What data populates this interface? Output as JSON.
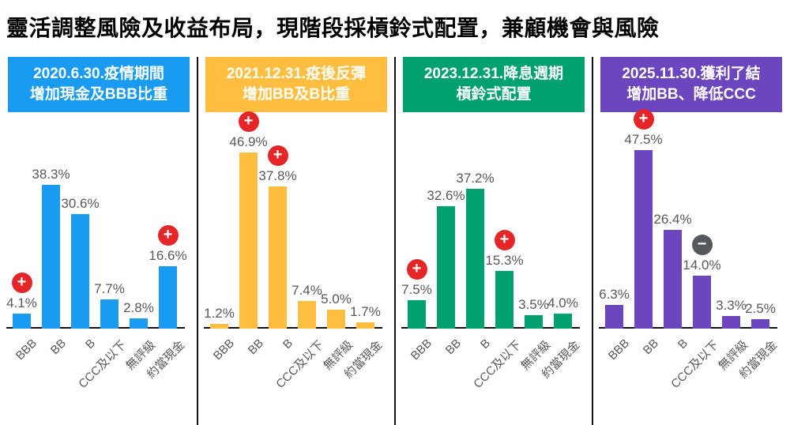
{
  "title": "靈活調整風險及收益布局，現階段採槓鈴式配置，兼顧機會與風險",
  "icons": {
    "plus": "+",
    "minus": "−"
  },
  "badge_colors": {
    "plus": "#E52629",
    "minus": "#55585C"
  },
  "x_labels": [
    "BBB",
    "BB",
    "B",
    "CCC及以下",
    "無評級",
    "約當現金"
  ],
  "panels": [
    {
      "header_line1": "2020.6.30.疫情期間",
      "header_line2": "增加現金及BBB比重",
      "color": "#189BF0",
      "bars": [
        {
          "category": "BBB",
          "value": 4.1,
          "display": "4.1%",
          "badge": "plus"
        },
        {
          "category": "BB",
          "value": 38.3,
          "display": "38.3%",
          "badge": null
        },
        {
          "category": "B",
          "value": 30.6,
          "display": "30.6%",
          "badge": null
        },
        {
          "category": "CCC及以下",
          "value": 7.7,
          "display": "7.7%",
          "badge": null
        },
        {
          "category": "無評級",
          "value": 2.8,
          "display": "2.8%",
          "badge": null
        },
        {
          "category": "約當現金",
          "value": 16.6,
          "display": "16.6%",
          "badge": "plus"
        }
      ]
    },
    {
      "header_line1": "2021.12.31.疫後反彈",
      "header_line2": "增加BB及B比重",
      "color": "#FFBE40",
      "bars": [
        {
          "category": "BBB",
          "value": 1.2,
          "display": "1.2%",
          "badge": null
        },
        {
          "category": "BB",
          "value": 46.9,
          "display": "46.9%",
          "badge": "plus"
        },
        {
          "category": "B",
          "value": 37.8,
          "display": "37.8%",
          "badge": "plus"
        },
        {
          "category": "CCC及以下",
          "value": 7.4,
          "display": "7.4%",
          "badge": null
        },
        {
          "category": "無評級",
          "value": 5.0,
          "display": "5.0%",
          "badge": null
        },
        {
          "category": "約當現金",
          "value": 1.7,
          "display": "1.7%",
          "badge": null
        }
      ]
    },
    {
      "header_line1": "2023.12.31.降息週期",
      "header_line2": "槓鈴式配置",
      "color": "#00A170",
      "bars": [
        {
          "category": "BBB",
          "value": 7.5,
          "display": "7.5%",
          "badge": "plus"
        },
        {
          "category": "BB",
          "value": 32.6,
          "display": "32.6%",
          "badge": null
        },
        {
          "category": "B",
          "value": 37.2,
          "display": "37.2%",
          "badge": null
        },
        {
          "category": "CCC及以下",
          "value": 15.3,
          "display": "15.3%",
          "badge": "plus"
        },
        {
          "category": "無評級",
          "value": 3.5,
          "display": "3.5%",
          "badge": null
        },
        {
          "category": "約當現金",
          "value": 4.0,
          "display": "4.0%",
          "badge": null
        }
      ]
    },
    {
      "header_line1": "2025.11.30.獲利了結",
      "header_line2": "增加BB、降低CCC",
      "color": "#6C46BE",
      "bars": [
        {
          "category": "BBB",
          "value": 6.3,
          "display": "6.3%",
          "badge": null
        },
        {
          "category": "BB",
          "value": 47.5,
          "display": "47.5%",
          "badge": "plus"
        },
        {
          "category": "B",
          "value": 26.4,
          "display": "26.4%",
          "badge": null
        },
        {
          "category": "CCC及以下",
          "value": 14.0,
          "display": "14.0%",
          "badge": "minus"
        },
        {
          "category": "無評級",
          "value": 3.3,
          "display": "3.3%",
          "badge": null
        },
        {
          "category": "約當現金",
          "value": 2.5,
          "display": "2.5%",
          "badge": null
        }
      ]
    }
  ],
  "chart_data": {
    "type": "bar",
    "title": "靈活調整風險及收益布局，現階段採槓鈴式配置，兼顧機會與風險",
    "categories": [
      "BBB",
      "BB",
      "B",
      "CCC及以下",
      "無評級",
      "約當現金"
    ],
    "unit": "%",
    "ylim": [
      0,
      50
    ],
    "grid": false,
    "legend_position": "panel-headers",
    "series": [
      {
        "name": "2020.6.30.疫情期間 增加現金及BBB比重",
        "color": "#189BF0",
        "values": [
          4.1,
          38.3,
          30.6,
          7.7,
          2.8,
          16.6
        ],
        "badges": [
          "plus",
          null,
          null,
          null,
          null,
          "plus"
        ]
      },
      {
        "name": "2021.12.31.疫後反彈 增加BB及B比重",
        "color": "#FFBE40",
        "values": [
          1.2,
          46.9,
          37.8,
          7.4,
          5.0,
          1.7
        ],
        "badges": [
          null,
          "plus",
          "plus",
          null,
          null,
          null
        ]
      },
      {
        "name": "2023.12.31.降息週期 槓鈴式配置",
        "color": "#00A170",
        "values": [
          7.5,
          32.6,
          37.2,
          15.3,
          3.5,
          4.0
        ],
        "badges": [
          "plus",
          null,
          null,
          "plus",
          null,
          null
        ]
      },
      {
        "name": "2025.11.30.獲利了結 增加BB、降低CCC",
        "color": "#6C46BE",
        "values": [
          6.3,
          47.5,
          26.4,
          14.0,
          3.3,
          2.5
        ],
        "badges": [
          null,
          "plus",
          null,
          "minus",
          null,
          null
        ]
      }
    ]
  }
}
